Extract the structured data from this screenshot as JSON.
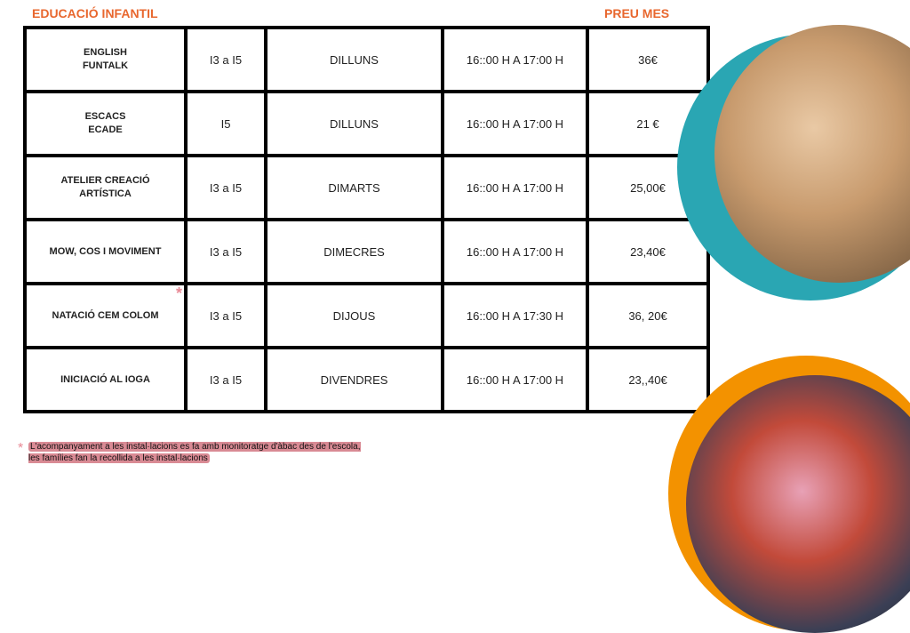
{
  "header": {
    "title": "EDUCACIÓ INFANTIL",
    "price_header": "PREU MES"
  },
  "rows": [
    {
      "name": "ENGLISH\nFUNTALK",
      "ages": "I3 a I5",
      "day": "DILLUNS",
      "time": "16::00 H A 17:00 H",
      "price": "36€"
    },
    {
      "name": "ESCACS\nECADE",
      "ages": "I5",
      "day": "DILLUNS",
      "time": "16::00 H A 17:00 H",
      "price": "21 €"
    },
    {
      "name": "ATELIER CREACIÓ\nARTÍSTICA",
      "ages": "I3 a I5",
      "day": "DIMARTS",
      "time": "16::00 H A 17:00 H",
      "price": "25,00€"
    },
    {
      "name": "MOW, COS I MOVIMENT",
      "ages": "I3 a I5",
      "day": "DIMECRES",
      "time": "16::00 H A 17:00 H",
      "price": "23,40€"
    },
    {
      "name": "NATACIÓ CEM COLOM",
      "ages": "I3 a I5",
      "day": "DIJOUS",
      "time": "16::00 H A 17:30 H",
      "price": "36, 20€"
    },
    {
      "name": "INICIACIÓ AL IOGA",
      "ages": "I3 a I5",
      "day": "DIVENDRES",
      "time": "16::00 H A 17:00 H",
      "price": "23,,40€"
    }
  ],
  "note": {
    "asterisk": "*",
    "text": "L'acompanyament a les instal·lacions es fa amb monitoratge d'àbac des de l'escola, les famílies fan la recollida a les instal·lacions"
  },
  "colors": {
    "accent": "#e8672e",
    "teal": "#2aa6b3",
    "orange": "#f39200",
    "note_bg": "#d98a94"
  }
}
